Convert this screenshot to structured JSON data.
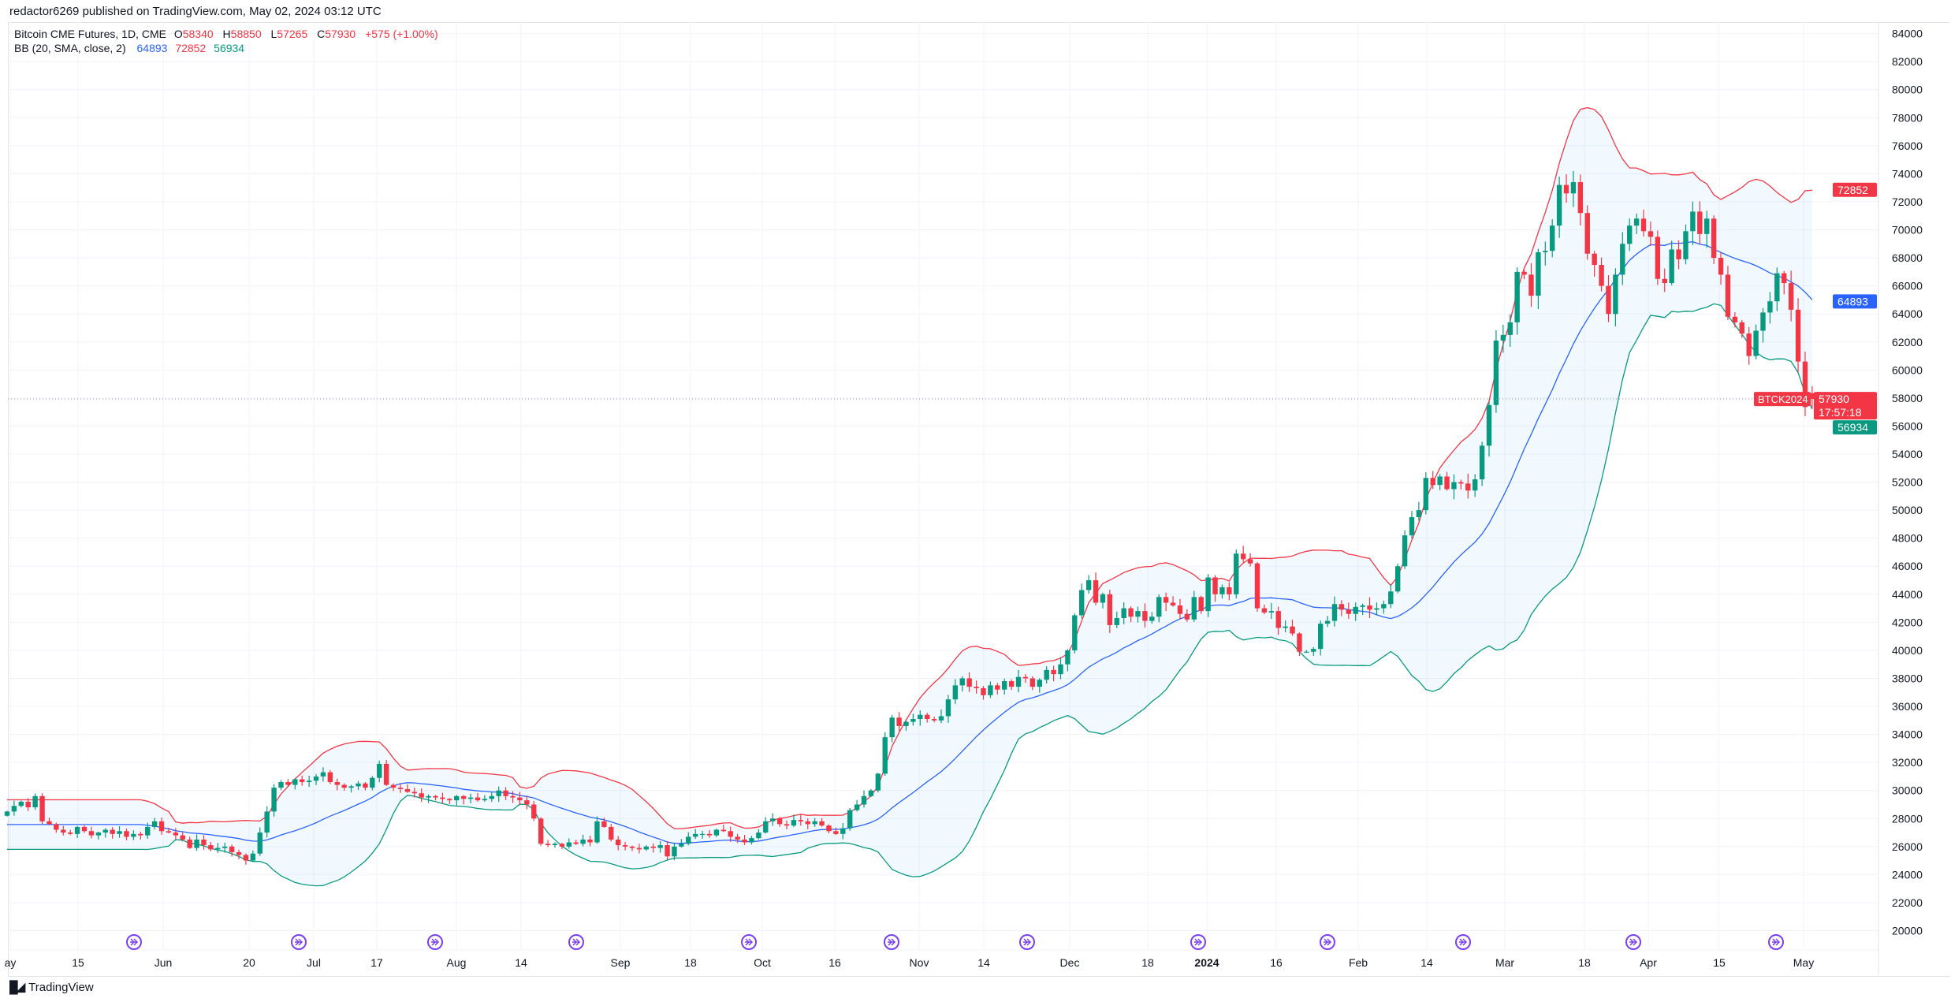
{
  "header": {
    "published": "redactor6269 published on TradingView.com, May 02, 2024 03:12 UTC"
  },
  "legend": {
    "symbol": "Bitcoin CME Futures, 1D, CME",
    "o_label": "O",
    "o": "58340",
    "h_label": "H",
    "h": "58850",
    "l_label": "L",
    "l": "57265",
    "c_label": "C",
    "c": "57930",
    "change": "+575 (+1.00%)",
    "indicator": "BB (20, SMA, close, 2)",
    "bb_basis": "64893",
    "bb_upper": "72852",
    "bb_lower": "56934"
  },
  "price_tags": {
    "upper": "72852",
    "basis": "64893",
    "last": "57930",
    "countdown": "17:57:18",
    "lower": "56934",
    "symbol_tag": "BTCK2024"
  },
  "footer": {
    "brand": "TradingView",
    "logo_text": "TV"
  },
  "colors": {
    "up": "#089981",
    "down": "#f23645",
    "basis": "#2962ff",
    "upper": "#f23645",
    "lower": "#089981",
    "band_fill": "#2196f3"
  },
  "chart_data": {
    "type": "candlestick",
    "title": "Bitcoin CME Futures, 1D, CME",
    "ylim": [
      20000,
      84000
    ],
    "y_ticks": [
      "84000",
      "82000",
      "80000",
      "78000",
      "76000",
      "74000",
      "72000",
      "70000",
      "68000",
      "66000",
      "64000",
      "62000",
      "60000",
      "58000",
      "56000",
      "54000",
      "52000",
      "50000",
      "48000",
      "46000",
      "44000",
      "42000",
      "40000",
      "38000",
      "36000",
      "34000",
      "32000",
      "30000",
      "28000",
      "26000",
      "24000",
      "22000",
      "20000"
    ],
    "x_ticks": [
      "ay",
      "15",
      "Jun",
      "20",
      "Jul",
      "17",
      "Aug",
      "14",
      "Sep",
      "18",
      "Oct",
      "16",
      "Nov",
      "14",
      "Dec",
      "18",
      "2024",
      "16",
      "Feb",
      "14",
      "Mar",
      "18",
      "Apr",
      "15",
      "May"
    ],
    "last_candle": {
      "open": 58340,
      "high": 58850,
      "low": 57265,
      "close": 57930
    },
    "close_k": [
      28.5,
      28.9,
      29.2,
      28.8,
      29.6,
      27.8,
      27.6,
      27.2,
      27.0,
      26.9,
      27.4,
      27.1,
      26.8,
      27.0,
      27.2,
      26.9,
      27.1,
      26.7,
      26.9,
      26.8,
      27.4,
      27.8,
      27.1,
      27.0,
      26.8,
      26.5,
      25.9,
      26.5,
      26.1,
      25.8,
      25.9,
      26.0,
      25.6,
      25.4,
      25.0,
      25.5,
      27.0,
      28.5,
      30.2,
      30.6,
      30.4,
      30.8,
      30.6,
      30.7,
      31.0,
      31.3,
      30.6,
      30.4,
      30.2,
      30.3,
      30.5,
      30.2,
      30.9,
      31.9,
      30.4,
      30.2,
      30.1,
      29.9,
      29.8,
      29.5,
      29.6,
      29.5,
      29.4,
      29.3,
      29.6,
      29.4,
      29.5,
      29.3,
      29.4,
      29.6,
      30.0,
      29.6,
      29.5,
      29.3,
      29.0,
      28.0,
      26.2,
      26.1,
      26.2,
      26.0,
      26.3,
      26.2,
      26.5,
      26.3,
      27.8,
      27.4,
      26.5,
      26.1,
      26.0,
      25.9,
      25.8,
      26.0,
      25.9,
      26.1,
      25.3,
      26.0,
      26.2,
      26.7,
      26.9,
      26.9,
      26.8,
      27.2,
      27.1,
      26.7,
      26.5,
      26.3,
      26.6,
      27.0,
      27.8,
      28.0,
      27.6,
      27.5,
      27.9,
      27.8,
      27.6,
      27.8,
      27.5,
      27.1,
      26.9,
      27.3,
      28.6,
      29.0,
      29.6,
      30.0,
      31.2,
      33.8,
      35.2,
      34.6,
      34.9,
      35.1,
      35.4,
      35.1,
      35.0,
      35.3,
      36.5,
      37.5,
      38.0,
      37.4,
      37.3,
      36.8,
      37.5,
      37.2,
      37.8,
      37.4,
      38.1,
      38.0,
      37.4,
      37.9,
      38.6,
      38.3,
      39.0,
      40.0,
      42.5,
      44.3,
      45.0,
      43.4,
      44.0,
      41.8,
      42.3,
      43.0,
      42.4,
      42.8,
      42.1,
      42.4,
      43.8,
      43.4,
      43.2,
      42.6,
      42.2,
      43.8,
      42.8,
      45.2,
      44.0,
      44.5,
      44.0,
      46.9,
      46.5,
      46.2,
      43.0,
      42.7,
      42.8,
      41.6,
      41.7,
      41.2,
      39.9,
      39.9,
      40.1,
      41.9,
      42.1,
      43.3,
      42.9,
      42.6,
      43.1,
      43.2,
      42.9,
      43.0,
      43.3,
      44.2,
      46.0,
      48.2,
      49.5,
      50.0,
      52.3,
      51.8,
      52.4,
      51.5,
      52.0,
      51.9,
      51.4,
      52.2,
      54.6,
      57.5,
      62.1,
      62.5,
      63.4,
      67.0,
      66.8,
      65.3,
      68.4,
      68.5,
      70.3,
      73.2,
      72.6,
      73.4,
      71.2,
      68.3,
      67.5,
      66.0,
      64.0,
      66.8,
      69.0,
      70.3,
      70.8,
      69.9,
      69.5,
      66.5,
      66.2,
      68.6,
      67.9,
      69.9,
      71.3,
      69.7,
      70.8,
      68.0,
      66.8,
      63.8,
      63.4,
      62.6,
      61.0,
      62.8,
      64.1,
      64.9,
      66.9,
      66.2,
      64.3,
      60.6,
      57.355,
      57.93
    ],
    "indicator": {
      "name": "Bollinger Bands",
      "length": 20,
      "ma": "SMA",
      "source": "close",
      "mult": 2,
      "last": {
        "basis": 64893,
        "upper": 72852,
        "lower": 56934
      }
    }
  }
}
